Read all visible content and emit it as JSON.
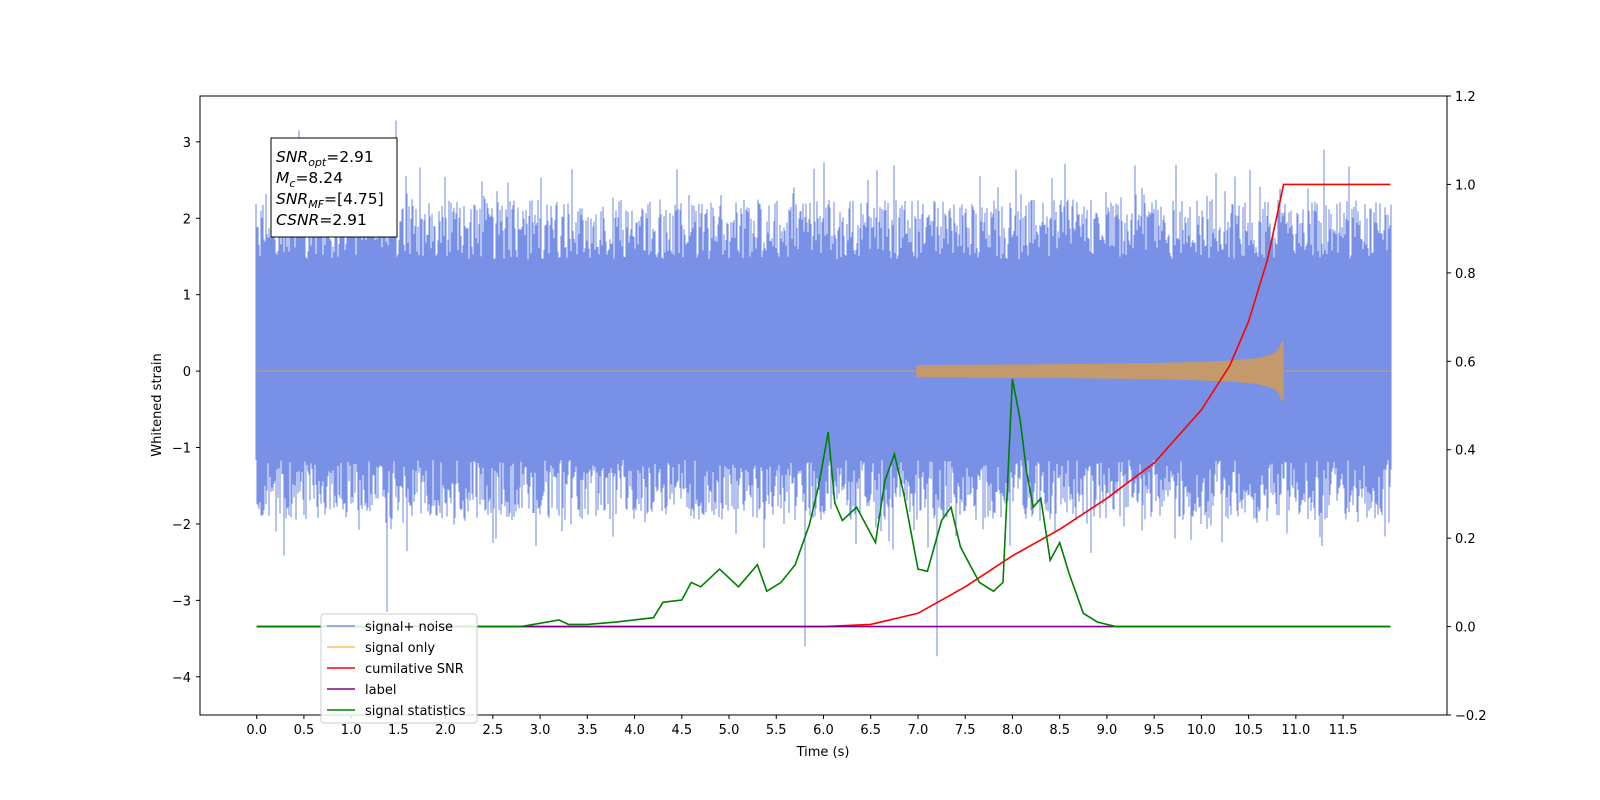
{
  "chart_data": {
    "type": "line",
    "xlabel": "Time (s)",
    "ylabel": "Whitened strain",
    "xlim": [
      -0.6,
      12.6
    ],
    "ylim": [
      -4.5,
      3.6
    ],
    "y2lim": [
      -0.2,
      1.2
    ],
    "x_ticks": [
      "0.0",
      "0.5",
      "1.0",
      "1.5",
      "2.0",
      "2.5",
      "3.0",
      "3.5",
      "4.0",
      "4.5",
      "5.0",
      "5.5",
      "6.0",
      "6.5",
      "7.0",
      "7.5",
      "8.0",
      "8.5",
      "9.0",
      "9.5",
      "10.0",
      "10.5",
      "11.0",
      "11.5"
    ],
    "y_ticks": [
      "3",
      "2",
      "1",
      "0",
      "−1",
      "−2",
      "−3",
      "−4"
    ],
    "y2_ticks": [
      "1.2",
      "1.0",
      "0.8",
      "0.6",
      "0.4",
      "0.2",
      "0.0",
      "−0.2"
    ],
    "grid": false,
    "legend_position": "lower-left",
    "annotation": {
      "lines": [
        {
          "var": "SNR",
          "sub": "opt",
          "value": "=2.91"
        },
        {
          "var": "M",
          "sub": "c",
          "value": "=8.24"
        },
        {
          "var": "SNR",
          "sub": "MF",
          "value": "=[4.75]"
        },
        {
          "var": "CSNR",
          "sub": "",
          "value": "=2.91"
        }
      ]
    },
    "series": [
      {
        "name": "signal+ noise",
        "color": "#7891e6",
        "axis": "left",
        "style": "noise",
        "x_range": [
          0.0,
          12.0
        ],
        "typical_range": [
          -1.6,
          1.9
        ],
        "extremes": [
          [
            0.45,
            3.15
          ],
          [
            1.48,
            3.28
          ],
          [
            5.8,
            -3.6
          ],
          [
            7.2,
            -3.73
          ],
          [
            11.3,
            2.9
          ],
          [
            1.38,
            -3.15
          ]
        ]
      },
      {
        "name": "signal only",
        "color": "#ffbf60",
        "axis": "left",
        "style": "chirp",
        "x_range": [
          0.0,
          12.0
        ],
        "merger_time": 10.87,
        "peak_amplitude": 0.38
      },
      {
        "name": "cumilative SNR",
        "color": "#ff0000",
        "axis": "right",
        "x": [
          0.0,
          5.5,
          6.0,
          6.5,
          7.0,
          7.5,
          8.0,
          8.5,
          9.0,
          9.5,
          10.0,
          10.3,
          10.5,
          10.7,
          10.8,
          10.87,
          12.0
        ],
        "values": [
          0.0,
          0.0,
          0.0,
          0.005,
          0.03,
          0.09,
          0.16,
          0.22,
          0.29,
          0.37,
          0.49,
          0.59,
          0.69,
          0.83,
          0.93,
          1.0,
          1.0
        ]
      },
      {
        "name": "label",
        "color": "#800080",
        "axis": "right",
        "x": [
          0.0,
          12.0
        ],
        "values": [
          0.0,
          0.0
        ]
      },
      {
        "name": "signal statistics",
        "color": "#008000",
        "axis": "right",
        "x": [
          0.0,
          2.8,
          3.2,
          3.3,
          3.5,
          3.8,
          4.0,
          4.2,
          4.3,
          4.5,
          4.6,
          4.7,
          4.9,
          5.1,
          5.3,
          5.4,
          5.55,
          5.7,
          5.85,
          5.95,
          6.05,
          6.12,
          6.2,
          6.35,
          6.55,
          6.65,
          6.75,
          6.85,
          7.0,
          7.1,
          7.25,
          7.35,
          7.45,
          7.55,
          7.65,
          7.8,
          7.9,
          8.0,
          8.08,
          8.15,
          8.22,
          8.3,
          8.4,
          8.5,
          8.6,
          8.75,
          8.9,
          9.1,
          9.5,
          12.0
        ],
        "values": [
          0.0,
          0.0,
          0.015,
          0.005,
          0.005,
          0.01,
          0.015,
          0.02,
          0.055,
          0.06,
          0.1,
          0.09,
          0.13,
          0.09,
          0.14,
          0.08,
          0.1,
          0.14,
          0.23,
          0.32,
          0.44,
          0.28,
          0.24,
          0.27,
          0.19,
          0.33,
          0.39,
          0.3,
          0.13,
          0.125,
          0.24,
          0.27,
          0.18,
          0.14,
          0.1,
          0.08,
          0.1,
          0.56,
          0.47,
          0.35,
          0.27,
          0.29,
          0.15,
          0.19,
          0.12,
          0.03,
          0.01,
          0.0,
          0.0,
          0.0
        ]
      }
    ]
  }
}
